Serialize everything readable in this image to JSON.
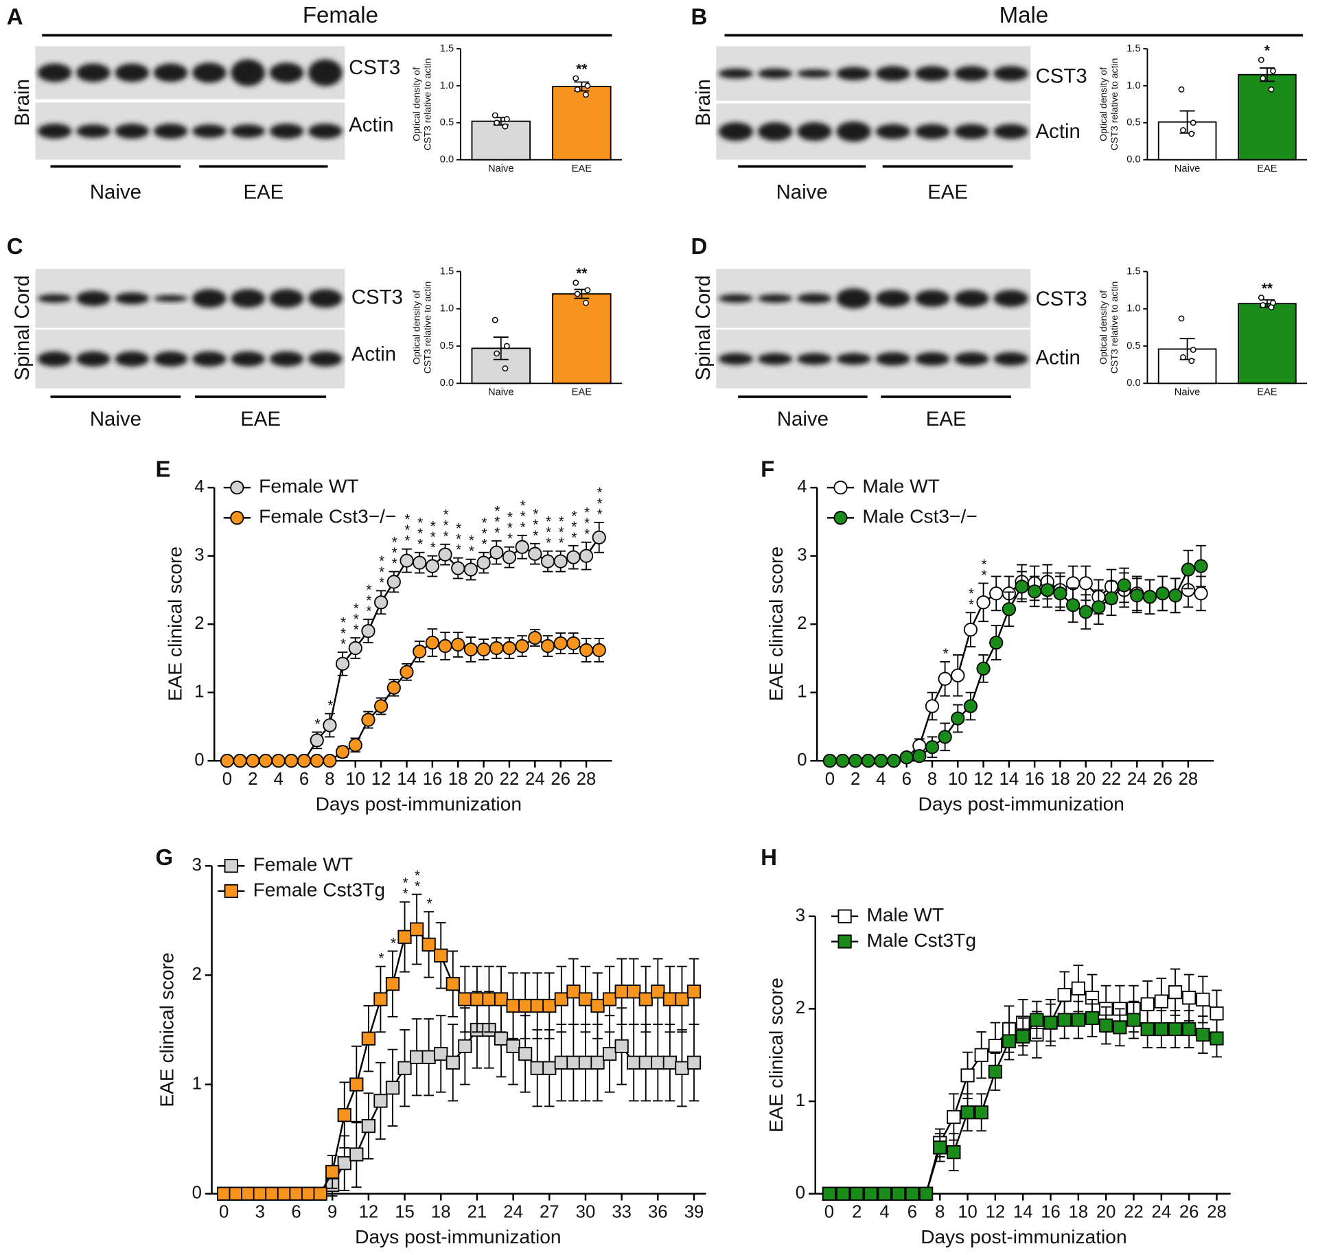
{
  "figure": {
    "headers": [
      "Female",
      "Male"
    ],
    "panels": [
      {
        "letter": "A",
        "tissue": "Brain",
        "bands": [
          "CST3",
          "Actin"
        ],
        "groups": [
          "Naive",
          "EAE"
        ]
      },
      {
        "letter": "B",
        "tissue": "Brain",
        "bands": [
          "CST3",
          "Actin"
        ],
        "groups": [
          "Naive",
          "EAE"
        ]
      },
      {
        "letter": "C",
        "tissue": "Spinal Cord",
        "bands": [
          "CST3",
          "Actin"
        ],
        "groups": [
          "Naive",
          "EAE"
        ]
      },
      {
        "letter": "D",
        "tissue": "Spinal Cord",
        "bands": [
          "CST3",
          "Actin"
        ],
        "groups": [
          "Naive",
          "EAE"
        ]
      }
    ]
  },
  "chart_data": [
    {
      "type": "bar",
      "ylabel": [
        "Optical density of",
        "CST3 relative to actin"
      ],
      "categories": [
        "Naive",
        "EAE"
      ],
      "values": [
        0.52,
        0.99
      ],
      "errors": [
        0.05,
        0.06
      ],
      "colors": [
        "#d9d9d9",
        "#f7941d"
      ],
      "points": [
        [
          0.6,
          0.55,
          0.5,
          0.45
        ],
        [
          1.1,
          1.0,
          0.95,
          0.88
        ]
      ],
      "significance": [
        null,
        "**"
      ],
      "ylim": [
        0,
        1.5
      ],
      "yticks": [
        {
          "value": 0,
          "label": "0.0"
        },
        0.5,
        {
          "value": 1,
          "label": "1.0"
        },
        1.5
      ]
    },
    {
      "type": "bar",
      "ylabel": [
        "Optical density of",
        "CST3 relative to actin"
      ],
      "categories": [
        "Naive",
        "EAE"
      ],
      "values": [
        0.51,
        1.15
      ],
      "errors": [
        0.15,
        0.09
      ],
      "colors": [
        "#ffffff",
        "#1a8c1a"
      ],
      "points": [
        [
          0.95,
          0.5,
          0.4,
          0.35
        ],
        [
          1.35,
          1.2,
          1.1,
          0.95
        ]
      ],
      "significance": [
        null,
        "*"
      ],
      "ylim": [
        0,
        1.5
      ],
      "yticks": [
        {
          "value": 0,
          "label": "0.0"
        },
        0.5,
        {
          "value": 1,
          "label": "1.0"
        },
        1.5
      ]
    },
    {
      "type": "bar",
      "ylabel": [
        "Optical density of",
        "CST3 relative to actin"
      ],
      "categories": [
        "Naive",
        "EAE"
      ],
      "values": [
        0.47,
        1.2
      ],
      "errors": [
        0.15,
        0.06
      ],
      "colors": [
        "#d9d9d9",
        "#f7941d"
      ],
      "points": [
        [
          0.85,
          0.5,
          0.4,
          0.2
        ],
        [
          1.35,
          1.25,
          1.2,
          1.08
        ]
      ],
      "significance": [
        null,
        "**"
      ],
      "ylim": [
        0,
        1.5
      ],
      "yticks": [
        {
          "value": 0,
          "label": "0.0"
        },
        0.5,
        {
          "value": 1,
          "label": "1.0"
        },
        1.5
      ]
    },
    {
      "type": "bar",
      "ylabel": [
        "Optical density of",
        "CST3 relative to actin"
      ],
      "categories": [
        "Naive",
        "EAE"
      ],
      "values": [
        0.46,
        1.07
      ],
      "errors": [
        0.14,
        0.05
      ],
      "colors": [
        "#ffffff",
        "#1a8c1a"
      ],
      "points": [
        [
          0.87,
          0.45,
          0.35,
          0.3
        ],
        [
          1.15,
          1.08,
          1.05,
          1.02
        ]
      ],
      "significance": [
        null,
        "**"
      ],
      "ylim": [
        0,
        1.5
      ],
      "yticks": [
        {
          "value": 0,
          "label": "0.0"
        },
        0.5,
        {
          "value": 1,
          "label": "1.0"
        },
        1.5
      ]
    },
    {
      "type": "line",
      "panel": "E",
      "xlabel": "Days post-immunization",
      "ylabel": "EAE clinical score",
      "x": [
        0,
        1,
        2,
        3,
        4,
        5,
        6,
        7,
        8,
        9,
        10,
        11,
        12,
        13,
        14,
        15,
        16,
        17,
        18,
        19,
        20,
        21,
        22,
        23,
        24,
        25,
        26,
        27,
        28,
        29
      ],
      "xlim": [
        -1,
        30
      ],
      "xticks": [
        0,
        2,
        4,
        6,
        8,
        10,
        12,
        14,
        16,
        18,
        20,
        22,
        24,
        26,
        28
      ],
      "ylim": [
        0,
        4
      ],
      "yticks": [
        0,
        1,
        2,
        3,
        4
      ],
      "series": [
        {
          "name": "Female WT",
          "color": "#d3d3d3",
          "marker": "circle",
          "values": [
            0,
            0,
            0,
            0,
            0,
            0,
            0,
            0.3,
            0.52,
            1.42,
            1.65,
            1.9,
            2.32,
            2.62,
            2.93,
            2.9,
            2.85,
            3.02,
            2.82,
            2.8,
            2.9,
            3.05,
            2.98,
            3.13,
            3.03,
            2.92,
            2.92,
            2.98,
            3.0,
            3.27
          ],
          "errors": [
            0,
            0,
            0,
            0,
            0,
            0,
            0,
            0.12,
            0.17,
            0.17,
            0.15,
            0.17,
            0.17,
            0.15,
            0.17,
            0.15,
            0.15,
            0.15,
            0.15,
            0.15,
            0.15,
            0.17,
            0.15,
            0.17,
            0.15,
            0.15,
            0.15,
            0.17,
            0.2,
            0.22
          ]
        },
        {
          "name": "Female Cst3−/−",
          "color": "#f7941d",
          "marker": "circle",
          "values": [
            0,
            0,
            0,
            0,
            0,
            0,
            0,
            0,
            0,
            0.13,
            0.23,
            0.6,
            0.8,
            1.07,
            1.3,
            1.6,
            1.73,
            1.68,
            1.7,
            1.63,
            1.63,
            1.65,
            1.65,
            1.68,
            1.8,
            1.68,
            1.72,
            1.72,
            1.62,
            1.62
          ],
          "errors": [
            0,
            0,
            0,
            0,
            0,
            0,
            0,
            0,
            0,
            0.08,
            0.1,
            0.12,
            0.12,
            0.12,
            0.12,
            0.15,
            0.2,
            0.2,
            0.18,
            0.18,
            0.15,
            0.15,
            0.15,
            0.15,
            0.12,
            0.15,
            0.15,
            0.15,
            0.17,
            0.17
          ]
        }
      ],
      "significance": [
        null,
        null,
        null,
        null,
        null,
        null,
        null,
        "*",
        "*",
        "***",
        "***",
        "***",
        "***",
        "***",
        "***",
        "***",
        "***",
        "***",
        "***",
        "**",
        "***",
        "***",
        "***",
        "***",
        "***",
        "***",
        "***",
        "***",
        "***",
        "***"
      ]
    },
    {
      "type": "line",
      "panel": "F",
      "xlabel": "Days post-immunization",
      "ylabel": "EAE clinical score",
      "x": [
        0,
        1,
        2,
        3,
        4,
        5,
        6,
        7,
        8,
        9,
        10,
        11,
        12,
        13,
        14,
        15,
        16,
        17,
        18,
        19,
        20,
        21,
        22,
        23,
        24,
        25,
        26,
        27,
        28,
        29
      ],
      "xlim": [
        -1,
        30
      ],
      "xticks": [
        0,
        2,
        4,
        6,
        8,
        10,
        12,
        14,
        16,
        18,
        20,
        22,
        24,
        26,
        28
      ],
      "ylim": [
        0,
        4
      ],
      "yticks": [
        0,
        1,
        2,
        3,
        4
      ],
      "series": [
        {
          "name": "Male WT",
          "color": "#ffffff",
          "marker": "circle",
          "values": [
            0,
            0,
            0,
            0,
            0,
            0,
            0.05,
            0.22,
            0.8,
            1.2,
            1.25,
            1.92,
            2.32,
            2.45,
            2.45,
            2.62,
            2.6,
            2.62,
            2.5,
            2.6,
            2.6,
            2.4,
            2.55,
            2.5,
            2.45,
            2.4,
            2.45,
            2.42,
            2.5,
            2.45
          ],
          "errors": [
            0,
            0,
            0,
            0,
            0,
            0,
            0.05,
            0.1,
            0.2,
            0.25,
            0.3,
            0.25,
            0.28,
            0.25,
            0.25,
            0.25,
            0.25,
            0.25,
            0.25,
            0.25,
            0.25,
            0.25,
            0.25,
            0.25,
            0.25,
            0.25,
            0.25,
            0.25,
            0.25,
            0.25
          ]
        },
        {
          "name": "Male Cst3−/−",
          "color": "#1a8c1a",
          "marker": "circle",
          "values": [
            0,
            0,
            0,
            0,
            0,
            0,
            0.05,
            0.07,
            0.2,
            0.35,
            0.62,
            0.8,
            1.35,
            1.73,
            2.22,
            2.55,
            2.48,
            2.5,
            2.45,
            2.28,
            2.18,
            2.25,
            2.38,
            2.57,
            2.42,
            2.4,
            2.45,
            2.42,
            2.8,
            2.85
          ],
          "errors": [
            0,
            0,
            0,
            0,
            0,
            0,
            0.05,
            0.07,
            0.15,
            0.2,
            0.2,
            0.2,
            0.2,
            0.25,
            0.25,
            0.22,
            0.22,
            0.25,
            0.25,
            0.25,
            0.25,
            0.25,
            0.25,
            0.25,
            0.25,
            0.25,
            0.25,
            0.25,
            0.28,
            0.3
          ]
        }
      ],
      "significance": [
        null,
        null,
        null,
        null,
        null,
        null,
        null,
        null,
        null,
        "*",
        null,
        "**",
        "**",
        null,
        null,
        null,
        null,
        null,
        null,
        null,
        null,
        null,
        null,
        null,
        null,
        null,
        null,
        null,
        null,
        null
      ]
    },
    {
      "type": "line",
      "panel": "G",
      "xlabel": "Days post-immunization",
      "ylabel": "EAE clinical score",
      "x": [
        0,
        1,
        2,
        3,
        4,
        5,
        6,
        7,
        8,
        9,
        10,
        11,
        12,
        13,
        14,
        15,
        16,
        17,
        18,
        19,
        20,
        21,
        22,
        23,
        24,
        25,
        26,
        27,
        28,
        29,
        30,
        31,
        32,
        33,
        34,
        35,
        36,
        37,
        38,
        39
      ],
      "xlim": [
        -1,
        40
      ],
      "xticks": [
        0,
        3,
        6,
        9,
        12,
        15,
        18,
        21,
        24,
        27,
        30,
        33,
        36,
        39
      ],
      "ylim": [
        0,
        3
      ],
      "yticks": [
        0,
        1,
        2,
        3
      ],
      "series": [
        {
          "name": "Female WT",
          "color": "#d3d3d3",
          "marker": "square",
          "values": [
            0,
            0,
            0,
            0,
            0,
            0,
            0,
            0,
            0,
            0.08,
            0.28,
            0.36,
            0.62,
            0.85,
            0.97,
            1.15,
            1.25,
            1.25,
            1.28,
            1.2,
            1.35,
            1.5,
            1.5,
            1.42,
            1.35,
            1.28,
            1.15,
            1.15,
            1.2,
            1.2,
            1.2,
            1.2,
            1.28,
            1.35,
            1.2,
            1.2,
            1.2,
            1.2,
            1.15,
            1.2
          ],
          "errors": [
            0,
            0,
            0,
            0,
            0,
            0,
            0,
            0,
            0,
            0.1,
            0.25,
            0.3,
            0.3,
            0.35,
            0.35,
            0.35,
            0.35,
            0.35,
            0.35,
            0.35,
            0.35,
            0.35,
            0.35,
            0.35,
            0.35,
            0.35,
            0.35,
            0.35,
            0.35,
            0.35,
            0.35,
            0.35,
            0.35,
            0.35,
            0.35,
            0.35,
            0.35,
            0.35,
            0.35,
            0.35
          ]
        },
        {
          "name": "Female Cst3Tg",
          "color": "#f7941d",
          "marker": "square",
          "values": [
            0,
            0,
            0,
            0,
            0,
            0,
            0,
            0,
            0,
            0.2,
            0.72,
            1.0,
            1.42,
            1.78,
            1.92,
            2.35,
            2.42,
            2.28,
            2.18,
            1.92,
            1.78,
            1.78,
            1.78,
            1.78,
            1.72,
            1.72,
            1.72,
            1.72,
            1.78,
            1.85,
            1.78,
            1.72,
            1.78,
            1.85,
            1.85,
            1.78,
            1.85,
            1.78,
            1.78,
            1.85
          ],
          "errors": [
            0,
            0,
            0,
            0,
            0,
            0,
            0,
            0,
            0,
            0.15,
            0.3,
            0.35,
            0.3,
            0.3,
            0.3,
            0.32,
            0.32,
            0.3,
            0.3,
            0.3,
            0.3,
            0.3,
            0.3,
            0.3,
            0.3,
            0.3,
            0.3,
            0.3,
            0.3,
            0.3,
            0.3,
            0.3,
            0.3,
            0.3,
            0.3,
            0.3,
            0.3,
            0.3,
            0.3,
            0.3
          ]
        }
      ],
      "significance": [
        null,
        null,
        null,
        null,
        null,
        null,
        null,
        null,
        null,
        null,
        null,
        null,
        null,
        "*",
        "*",
        "**",
        "**",
        "*",
        null,
        null,
        null,
        null,
        null,
        null,
        null,
        null,
        null,
        null,
        null,
        null,
        null,
        null,
        null,
        null,
        null,
        null,
        null,
        null,
        null,
        null
      ]
    },
    {
      "type": "line",
      "panel": "H",
      "xlabel": "Days post-immunization",
      "ylabel": "EAE clinical score",
      "x": [
        0,
        1,
        2,
        3,
        4,
        5,
        6,
        7,
        8,
        9,
        10,
        11,
        12,
        13,
        14,
        15,
        16,
        17,
        18,
        19,
        20,
        21,
        22,
        23,
        24,
        25,
        26,
        27,
        28
      ],
      "xlim": [
        -1,
        29
      ],
      "xticks": [
        0,
        2,
        4,
        6,
        8,
        10,
        12,
        14,
        16,
        18,
        20,
        22,
        24,
        26,
        28
      ],
      "ylim": [
        0,
        3
      ],
      "yticks": [
        0,
        1,
        2,
        3
      ],
      "series": [
        {
          "name": "Male WT",
          "color": "#ffffff",
          "marker": "square",
          "values": [
            0,
            0,
            0,
            0,
            0,
            0,
            0,
            0,
            0.55,
            0.83,
            1.28,
            1.5,
            1.6,
            1.78,
            1.85,
            1.72,
            1.85,
            2.15,
            2.22,
            2.12,
            2.0,
            2.0,
            2.0,
            2.05,
            2.08,
            2.18,
            2.12,
            2.1,
            1.95
          ],
          "errors": [
            0,
            0,
            0,
            0,
            0,
            0,
            0,
            0,
            0.15,
            0.25,
            0.25,
            0.25,
            0.25,
            0.25,
            0.25,
            0.25,
            0.25,
            0.25,
            0.25,
            0.25,
            0.25,
            0.25,
            0.25,
            0.25,
            0.25,
            0.25,
            0.25,
            0.25,
            0.25
          ]
        },
        {
          "name": "Male Cst3Tg",
          "color": "#1a8c1a",
          "marker": "square",
          "values": [
            0,
            0,
            0,
            0,
            0,
            0,
            0,
            0,
            0.5,
            0.45,
            0.88,
            0.88,
            1.32,
            1.65,
            1.7,
            1.88,
            1.85,
            1.88,
            1.88,
            1.9,
            1.82,
            1.8,
            1.88,
            1.78,
            1.78,
            1.78,
            1.78,
            1.72,
            1.68
          ],
          "errors": [
            0,
            0,
            0,
            0,
            0,
            0,
            0,
            0,
            0.15,
            0.2,
            0.2,
            0.2,
            0.2,
            0.2,
            0.2,
            0.2,
            0.2,
            0.2,
            0.2,
            0.2,
            0.2,
            0.2,
            0.2,
            0.2,
            0.2,
            0.2,
            0.2,
            0.2,
            0.2
          ]
        }
      ]
    }
  ]
}
